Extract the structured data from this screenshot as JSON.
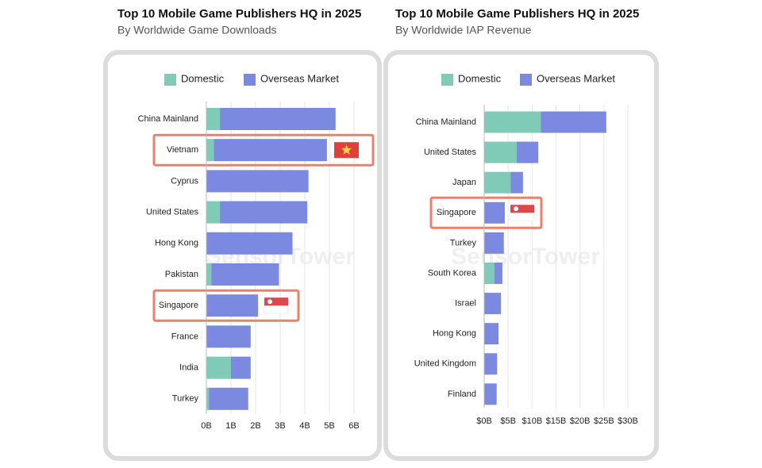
{
  "chart_data": [
    {
      "type": "stacked-bar-horizontal",
      "title": "Top 10 Mobile Game Publishers HQ in 2025",
      "subtitle": "By Worldwide Game Downloads",
      "watermark": "SensorTower",
      "categories": [
        "China Mainland",
        "Vietnam",
        "Cyprus",
        "United States",
        "Hong Kong",
        "Pakistan",
        "Singapore",
        "France",
        "India",
        "Turkey"
      ],
      "series": [
        {
          "name": "Domestic",
          "color": "#7fcbb7",
          "values": [
            0.55,
            0.3,
            0,
            0.55,
            0,
            0.2,
            0,
            0,
            1.0,
            0.1
          ]
        },
        {
          "name": "Overseas Market",
          "color": "#7b8ae0",
          "values": [
            4.7,
            4.6,
            4.15,
            3.55,
            3.5,
            2.75,
            2.1,
            1.8,
            0.8,
            1.6
          ]
        }
      ],
      "xlim": [
        0,
        6
      ],
      "xticks": [
        {
          "value": 0,
          "label": "0B"
        },
        {
          "value": 1,
          "label": "1B"
        },
        {
          "value": 2,
          "label": "2B"
        },
        {
          "value": 3,
          "label": "3B"
        },
        {
          "value": 4,
          "label": "4B"
        },
        {
          "value": 5,
          "label": "5B"
        },
        {
          "value": 6,
          "label": "6B"
        }
      ],
      "grid": true,
      "legend": "top"
    },
    {
      "type": "stacked-bar-horizontal",
      "title": "Top 10 Mobile Game Publishers HQ in 2025",
      "subtitle": "By Worldwide IAP Revenue",
      "watermark": "SensorTower",
      "categories": [
        "China Mainland",
        "United States",
        "Japan",
        "Singapore",
        "Turkey",
        "South Korea",
        "Israel",
        "Hong Kong",
        "United Kingdom",
        "Finland"
      ],
      "series": [
        {
          "name": "Domestic",
          "color": "#7fcbb7",
          "values": [
            11.8,
            6.8,
            5.5,
            0,
            0,
            2.1,
            0,
            0,
            0,
            0
          ]
        },
        {
          "name": "Overseas Market",
          "color": "#7b8ae0",
          "values": [
            13.7,
            4.5,
            2.6,
            4.3,
            4.1,
            1.7,
            3.5,
            3.0,
            2.7,
            2.6
          ]
        }
      ],
      "xlim": [
        0,
        30
      ],
      "xticks": [
        {
          "value": 0,
          "label": "$0B"
        },
        {
          "value": 5,
          "label": "$5B"
        },
        {
          "value": 10,
          "label": "$10B"
        },
        {
          "value": 15,
          "label": "$15B"
        },
        {
          "value": 20,
          "label": "$20B"
        },
        {
          "value": 25,
          "label": "$25B"
        },
        {
          "value": 30,
          "label": "$30B"
        }
      ],
      "grid": true,
      "legend": "top"
    }
  ]
}
